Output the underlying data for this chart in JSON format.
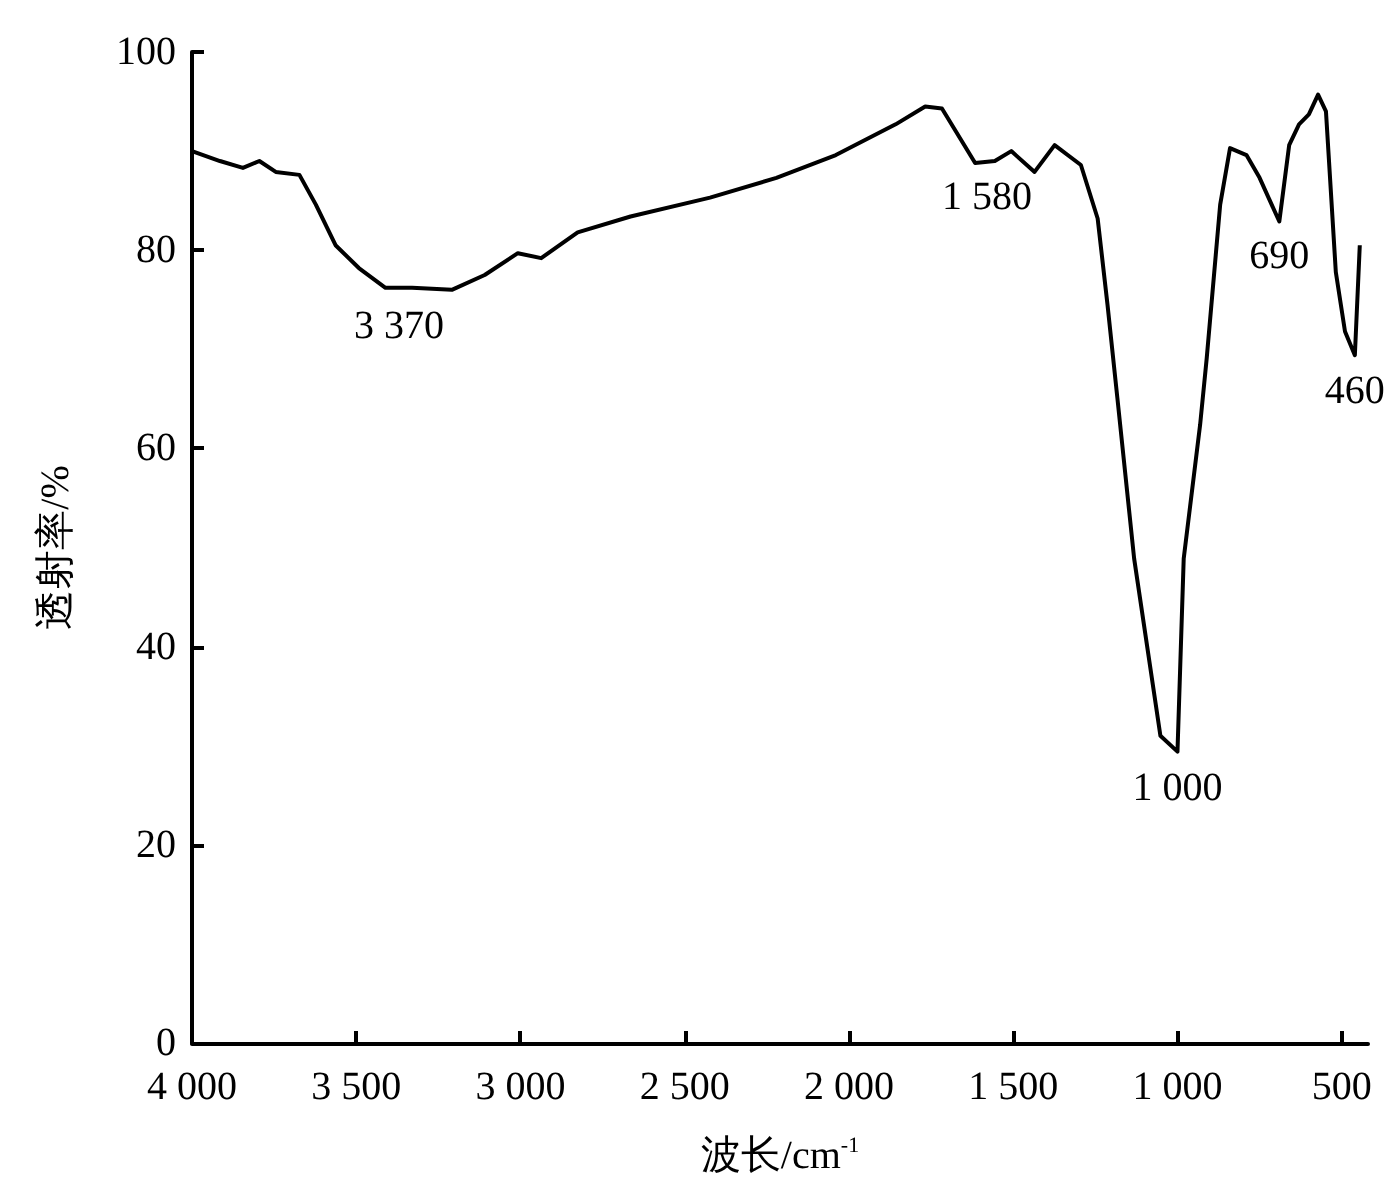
{
  "chart_data": {
    "type": "line",
    "xlabel": "波长/cm$^{-1}$",
    "ylabel": "透射率/%",
    "xlim": [
      4000,
      420
    ],
    "xticks": [
      {
        "value": 4000,
        "label": "4 000"
      },
      {
        "value": 3500,
        "label": "3 500"
      },
      {
        "value": 3000,
        "label": "3 000"
      },
      {
        "value": 2500,
        "label": "2 500"
      },
      {
        "value": 2000,
        "label": "2 000"
      },
      {
        "value": 1500,
        "label": "1 500"
      },
      {
        "value": 1000,
        "label": "1 000"
      },
      500
    ],
    "ylim": [
      0,
      100
    ],
    "yticks": [
      0,
      20,
      40,
      60,
      80,
      100
    ],
    "grid": false,
    "marker": "none",
    "line_style": "solid",
    "series": [
      {
        "color": "#000000",
        "x": [
          4000,
          3915,
          3845,
          3795,
          3745,
          3673,
          3623,
          3563,
          3492,
          3411,
          3330,
          3209,
          3109,
          3008,
          2937,
          2826,
          2665,
          2423,
          2221,
          2040,
          1858,
          1768,
          1717,
          1616,
          1556,
          1506,
          1435,
          1374,
          1294,
          1243,
          1213,
          1183,
          1132,
          1052,
          1000,
          981,
          931,
          911,
          870,
          840,
          790,
          750,
          690,
          660,
          630,
          600,
          572,
          548,
          518,
          490,
          460,
          445
        ],
        "values": [
          90.0,
          89.0,
          88.3,
          89.0,
          87.9,
          87.6,
          84.6,
          80.5,
          78.2,
          76.2,
          76.2,
          76.0,
          77.5,
          79.7,
          79.2,
          81.8,
          83.4,
          85.3,
          87.3,
          89.6,
          92.7,
          94.5,
          94.3,
          88.8,
          89.0,
          90.0,
          87.9,
          90.6,
          88.6,
          83.2,
          74.5,
          65.1,
          48.9,
          31.0,
          29.4,
          48.9,
          62.4,
          69.1,
          84.6,
          90.3,
          89.6,
          87.3,
          82.9,
          90.6,
          92.7,
          93.7,
          95.7,
          94.0,
          77.8,
          71.8,
          69.4,
          80.5
        ]
      }
    ],
    "annotations": [
      {
        "text": "3 370",
        "x": 3370,
        "y": 76
      },
      {
        "text": "1 580",
        "x": 1580,
        "y": 89
      },
      {
        "text": "1 000",
        "x": 1000,
        "y": 29.4
      },
      {
        "text": "690",
        "x": 690,
        "y": 83
      },
      {
        "text": "460",
        "x": 460,
        "y": 69.4
      }
    ]
  }
}
